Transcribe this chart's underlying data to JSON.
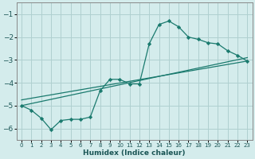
{
  "xlabel": "Humidex (Indice chaleur)",
  "bg_color": "#d4ecec",
  "grid_color": "#afd0d0",
  "line_color": "#1a7a6e",
  "xlim": [
    -0.5,
    23.5
  ],
  "ylim": [
    -6.5,
    -0.5
  ],
  "yticks": [
    -6,
    -5,
    -4,
    -3,
    -2,
    -1
  ],
  "xticks": [
    0,
    1,
    2,
    3,
    4,
    5,
    6,
    7,
    8,
    9,
    10,
    11,
    12,
    13,
    14,
    15,
    16,
    17,
    18,
    19,
    20,
    21,
    22,
    23
  ],
  "curve_x": [
    0,
    1,
    2,
    3,
    4,
    5,
    6,
    7,
    8,
    9,
    10,
    11,
    12,
    13,
    14,
    15,
    16,
    17,
    18,
    19,
    20,
    21,
    22,
    23
  ],
  "curve_y": [
    -5.0,
    -5.2,
    -5.55,
    -6.05,
    -5.65,
    -5.6,
    -5.6,
    -5.5,
    -4.35,
    -3.85,
    -3.85,
    -4.05,
    -4.05,
    -2.3,
    -1.45,
    -1.3,
    -1.55,
    -2.0,
    -2.1,
    -2.25,
    -2.3,
    -2.6,
    -2.8,
    -3.05
  ],
  "line1_x": [
    0,
    23
  ],
  "line1_y": [
    -5.0,
    -2.9
  ],
  "line2_x": [
    0,
    23
  ],
  "line2_y": [
    -4.75,
    -3.05
  ]
}
